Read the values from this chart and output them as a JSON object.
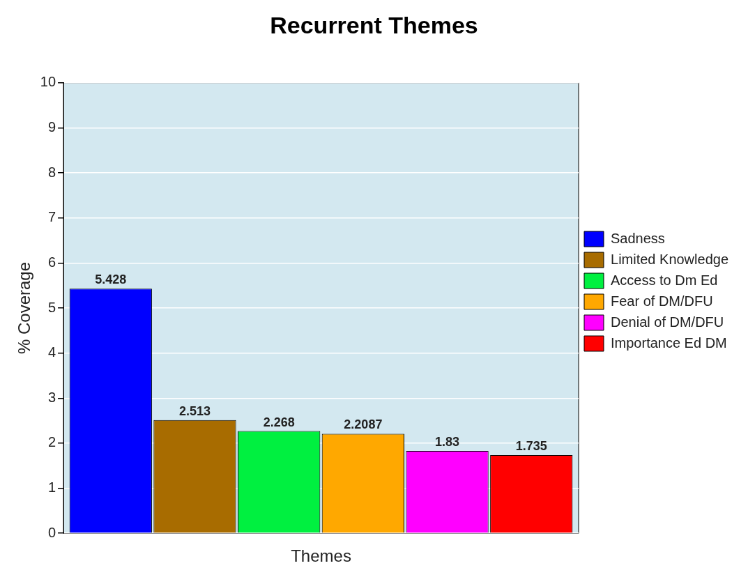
{
  "chart_data": {
    "type": "bar",
    "title": "Recurrent Themes",
    "xlabel": "Themes",
    "ylabel": "% Coverage",
    "categories": [
      null
    ],
    "series": [
      {
        "name": "Sadness",
        "color": "#0000ff",
        "values": [
          5.428
        ]
      },
      {
        "name": "Limited Knowledge",
        "color": "#a86c00",
        "values": [
          2.513
        ]
      },
      {
        "name": "Access to Dm Ed",
        "color": "#00f040",
        "values": [
          2.268
        ]
      },
      {
        "name": "Fear of DM/DFU",
        "color": "#ffa800",
        "values": [
          2.2087
        ]
      },
      {
        "name": "Denial of DM/DFU",
        "color": "#ff00ff",
        "values": [
          1.83
        ]
      },
      {
        "name": "Importance Ed DM",
        "color": "#ff0000",
        "values": [
          1.735
        ]
      }
    ],
    "ylim": [
      0,
      10
    ],
    "yticks": [
      0,
      1,
      2,
      3,
      4,
      5,
      6,
      7,
      8,
      9,
      10
    ],
    "grid": "y",
    "legend": "right",
    "data_labels": true
  }
}
